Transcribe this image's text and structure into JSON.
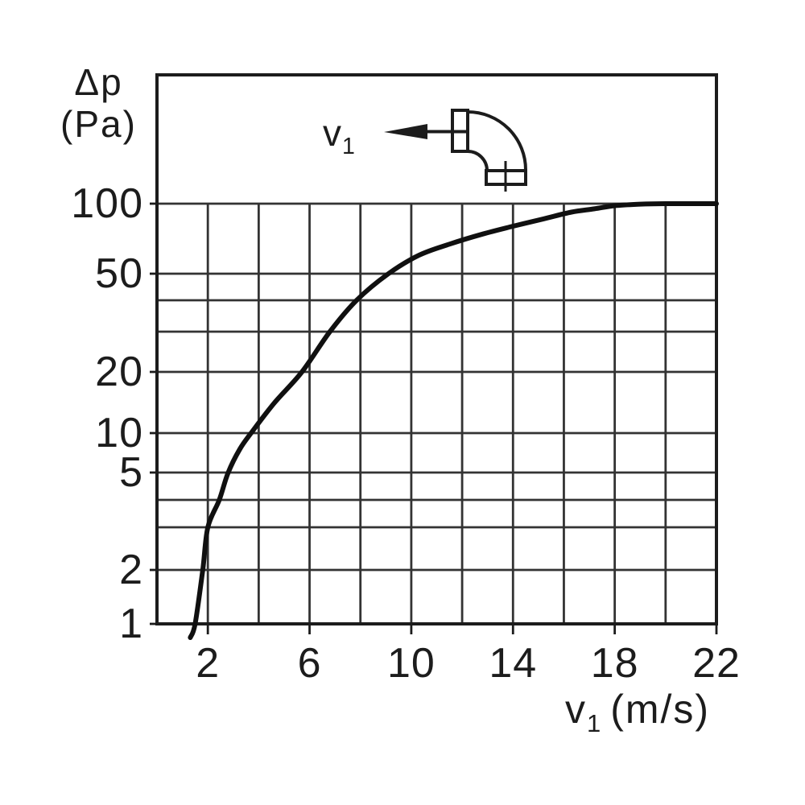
{
  "figure": {
    "background": "#ffffff",
    "ink_color": "#1c1c1c",
    "grid_color": "#333333",
    "curve_color": "#101010"
  },
  "y_axis": {
    "label_line1": "Δp",
    "label_line2": "(Pa)",
    "tick_labels": [
      100,
      50,
      20,
      10,
      5,
      2,
      1
    ]
  },
  "x_axis": {
    "label_var": "v",
    "label_sub": "1",
    "label_unit": "(m/s)",
    "tick_labels": [
      2,
      6,
      10,
      14,
      18,
      22
    ]
  },
  "inset": {
    "label_var": "v",
    "label_sub": "1",
    "icon": "elbow-fitting-icon",
    "arrow_direction": "left"
  },
  "chart_data": {
    "type": "line",
    "title": "",
    "xlabel": "v1 (m/s)",
    "ylabel": "Δp (Pa)",
    "x_axis": {
      "scale": "linear",
      "min": 0,
      "max": 22,
      "gridline_step": 2,
      "tick_labels": [
        2,
        6,
        10,
        14,
        18,
        22
      ]
    },
    "y_axis": {
      "scale": "log",
      "min": 1,
      "max": 100,
      "gridlines": [
        1,
        2,
        3,
        4,
        5,
        10,
        20,
        30,
        40,
        50,
        100
      ],
      "tick_labels": [
        100,
        50,
        20,
        10,
        5,
        2,
        1
      ]
    },
    "grid": true,
    "legend": false,
    "series": [
      {
        "name": "elbow-pressure-drop",
        "points": [
          [
            1.5,
            1
          ],
          [
            1.8,
            2
          ],
          [
            2.0,
            3
          ],
          [
            2.45,
            4
          ],
          [
            2.8,
            5
          ],
          [
            3.25,
            7.5
          ],
          [
            3.7,
            10
          ],
          [
            4.6,
            14
          ],
          [
            5.7,
            20
          ],
          [
            6.8,
            30
          ],
          [
            7.85,
            40
          ],
          [
            9.1,
            50
          ],
          [
            10.3,
            60
          ],
          [
            11.5,
            67
          ],
          [
            12.8,
            74
          ],
          [
            14,
            80
          ],
          [
            15.2,
            86
          ],
          [
            16.3,
            92
          ],
          [
            17.2,
            95
          ],
          [
            18,
            98
          ],
          [
            19,
            99.5
          ],
          [
            20,
            100
          ],
          [
            22,
            100
          ]
        ]
      }
    ]
  }
}
